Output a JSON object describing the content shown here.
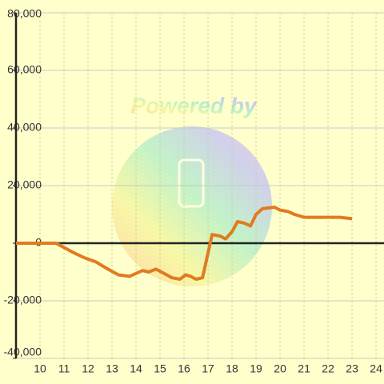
{
  "chart_data": {
    "type": "line",
    "watermark": "Powered by",
    "xlim": [
      9,
      24.33
    ],
    "xticks": [
      10,
      11,
      12,
      13,
      14,
      15,
      16,
      17,
      18,
      19,
      20,
      21,
      22,
      23,
      24
    ],
    "ylim": [
      -40000,
      80000
    ],
    "yticks": [
      {
        "value": -40000,
        "label": "-40,000"
      },
      {
        "value": -20000,
        "label": "-20,000"
      },
      0,
      {
        "value": 20000,
        "label": "20,000"
      },
      {
        "value": 40000,
        "label": "40,000"
      },
      {
        "value": 60000,
        "label": "60,000"
      },
      {
        "value": 80000,
        "label": "80,000"
      }
    ],
    "grid": true,
    "series": [
      {
        "color": "#e07b20",
        "x": [
          9,
          10.67,
          11.33,
          11.83,
          12.33,
          12.83,
          13.27,
          13.73,
          14.27,
          14.53,
          14.83,
          15.17,
          15.5,
          15.83,
          16.07,
          16.27,
          16.5,
          16.77,
          16.93,
          17.17,
          17.5,
          17.73,
          18.0,
          18.23,
          18.5,
          18.77,
          19.0,
          19.27,
          19.77,
          20.0,
          20.33,
          20.6,
          21.0,
          22.5,
          23.0
        ],
        "values": [
          0,
          0,
          -3000,
          -5000,
          -6500,
          -9000,
          -11000,
          -11500,
          -9500,
          -10000,
          -9000,
          -10500,
          -12000,
          -12500,
          -11000,
          -11500,
          -12500,
          -12000,
          -6000,
          3000,
          2500,
          1500,
          4000,
          7500,
          7000,
          6000,
          10000,
          12000,
          12500,
          11500,
          11000,
          10000,
          9000,
          9000,
          8500
        ]
      }
    ]
  }
}
